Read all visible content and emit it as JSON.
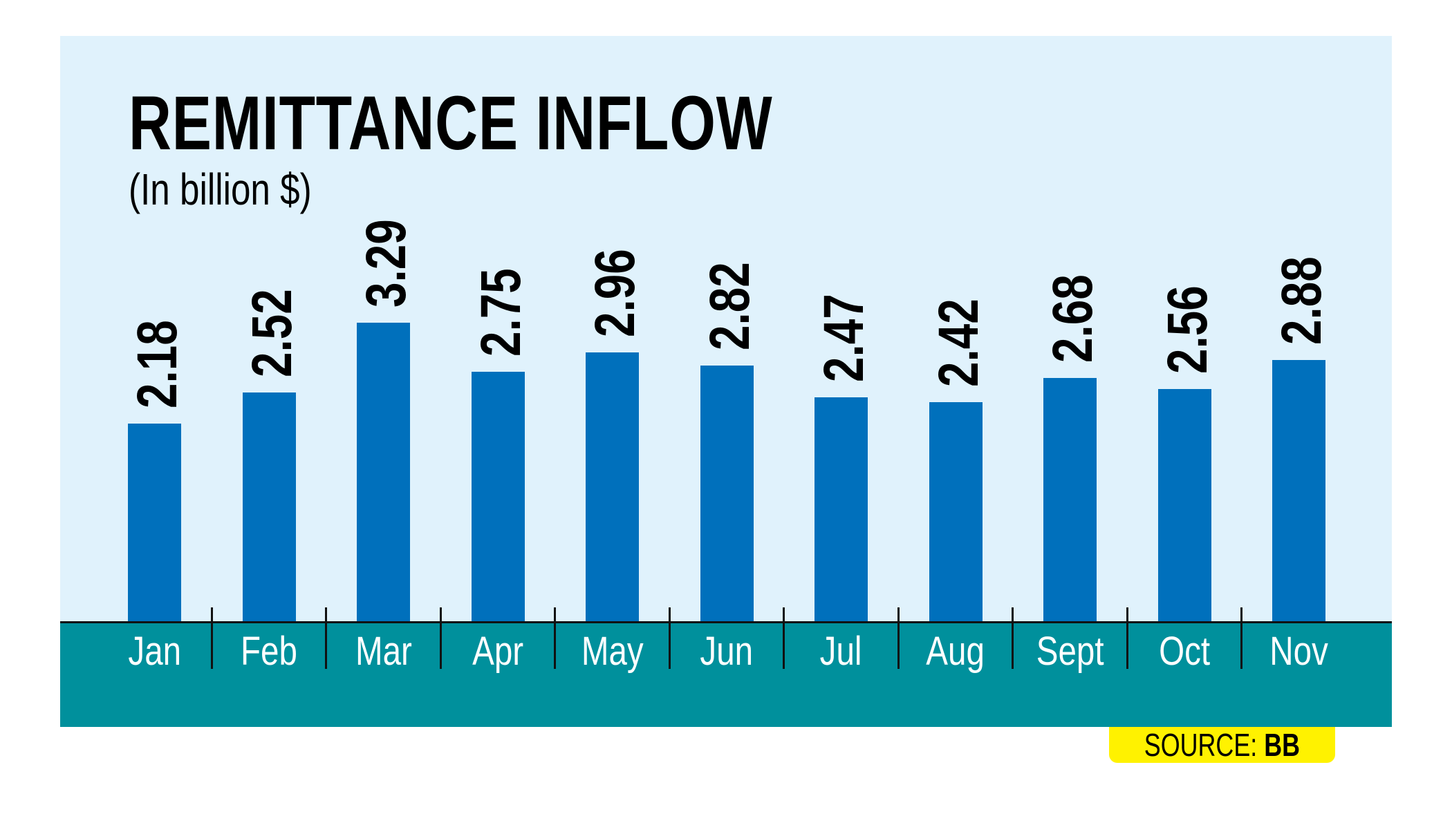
{
  "header": {
    "title": "REMITTANCE INFLOW",
    "subtitle": "(In billion $)"
  },
  "source": {
    "label": "SOURCE:",
    "value": "BB"
  },
  "colors": {
    "panel_bg": "#E0F2FC",
    "bar": "#0070BC",
    "axis_band": "#00909C",
    "source_badge": "#FFF200"
  },
  "chart_data": {
    "type": "bar",
    "title": "REMITTANCE INFLOW",
    "subtitle": "(In billion $)",
    "xlabel": "",
    "ylabel": "In billion $",
    "categories": [
      "Jan",
      "Feb",
      "Mar",
      "Apr",
      "May",
      "Jun",
      "Jul",
      "Aug",
      "Sept",
      "Oct",
      "Nov"
    ],
    "values": [
      2.18,
      2.52,
      3.29,
      2.75,
      2.96,
      2.82,
      2.47,
      2.42,
      2.68,
      2.56,
      2.88
    ],
    "value_labels": [
      "2.18",
      "2.52",
      "3.29",
      "2.75",
      "2.96",
      "2.82",
      "2.47",
      "2.42",
      "2.68",
      "2.56",
      "2.88"
    ],
    "ylim": [
      0,
      3.5
    ],
    "grid": false,
    "legend": null,
    "source": "SOURCE: BB"
  }
}
